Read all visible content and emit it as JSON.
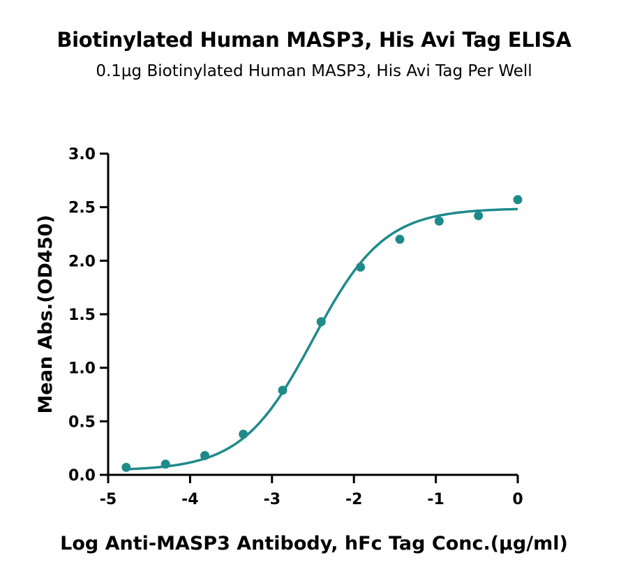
{
  "chart_data": {
    "type": "scatter",
    "title": "Biotinylated Human MASP3, His Avi Tag ELISA",
    "subtitle": "0.1µg Biotinylated Human MASP3, His Avi Tag Per Well",
    "xlabel": "Log Anti-MASP3 Antibody, hFc Tag Conc.(µg/ml)",
    "ylabel": "Mean Abs.(OD450)",
    "xlim": [
      -5,
      0
    ],
    "ylim": [
      0,
      3.0
    ],
    "x_ticks": [
      "-5",
      "-4",
      "-3",
      "-2",
      "-1",
      "0"
    ],
    "y_ticks": [
      "0.0",
      "0.5",
      "1.0",
      "1.5",
      "2.0",
      "2.5",
      "3.0"
    ],
    "grid": false,
    "color": "#1f8a8a",
    "series": [
      {
        "x": [
          -4.78,
          -4.3,
          -3.82,
          -3.35,
          -2.87,
          -2.4,
          -1.92,
          -1.44,
          -0.96,
          -0.48,
          0.0
        ],
        "y": [
          0.07,
          0.1,
          0.18,
          0.38,
          0.79,
          1.43,
          1.94,
          2.2,
          2.37,
          2.42,
          2.57
        ]
      }
    ],
    "fit": {
      "model": "4PL",
      "bottom": 0.04,
      "top": 2.49,
      "log_ec50": -2.5,
      "hill": 1.0
    }
  }
}
